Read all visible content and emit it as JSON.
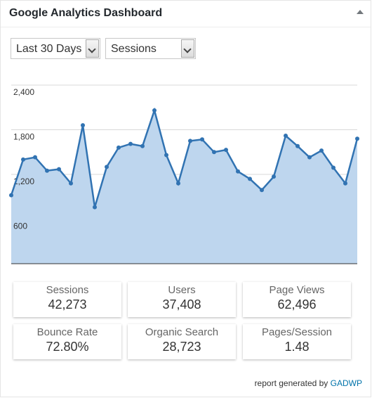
{
  "widget": {
    "title": "Google Analytics Dashboard"
  },
  "filters": {
    "period": "Last 30 Days",
    "metric": "Sessions"
  },
  "chart_data": {
    "type": "area",
    "ylim": [
      0,
      2400
    ],
    "yticks": [
      "2,400",
      "1,800",
      "1,200",
      "600"
    ],
    "ytick_values": [
      2400,
      1800,
      1200,
      600
    ],
    "values": [
      920,
      1400,
      1430,
      1250,
      1270,
      1080,
      1860,
      760,
      1300,
      1560,
      1610,
      1580,
      2060,
      1460,
      1080,
      1650,
      1670,
      1500,
      1530,
      1240,
      1140,
      990,
      1170,
      1720,
      1580,
      1430,
      1520,
      1290,
      1080,
      1680
    ],
    "grid": true,
    "colors": {
      "line": "#3173b2",
      "fill": "#bed6ee",
      "grid": "#d8d8d8",
      "axis": "#333333"
    }
  },
  "stats": [
    {
      "label": "Sessions",
      "value": "42,273"
    },
    {
      "label": "Users",
      "value": "37,408"
    },
    {
      "label": "Page Views",
      "value": "62,496"
    },
    {
      "label": "Bounce Rate",
      "value": "72.80%"
    },
    {
      "label": "Organic Search",
      "value": "28,723"
    },
    {
      "label": "Pages/Session",
      "value": "1.48"
    }
  ],
  "footer": {
    "prefix": "report generated by",
    "link": "GADWP"
  }
}
